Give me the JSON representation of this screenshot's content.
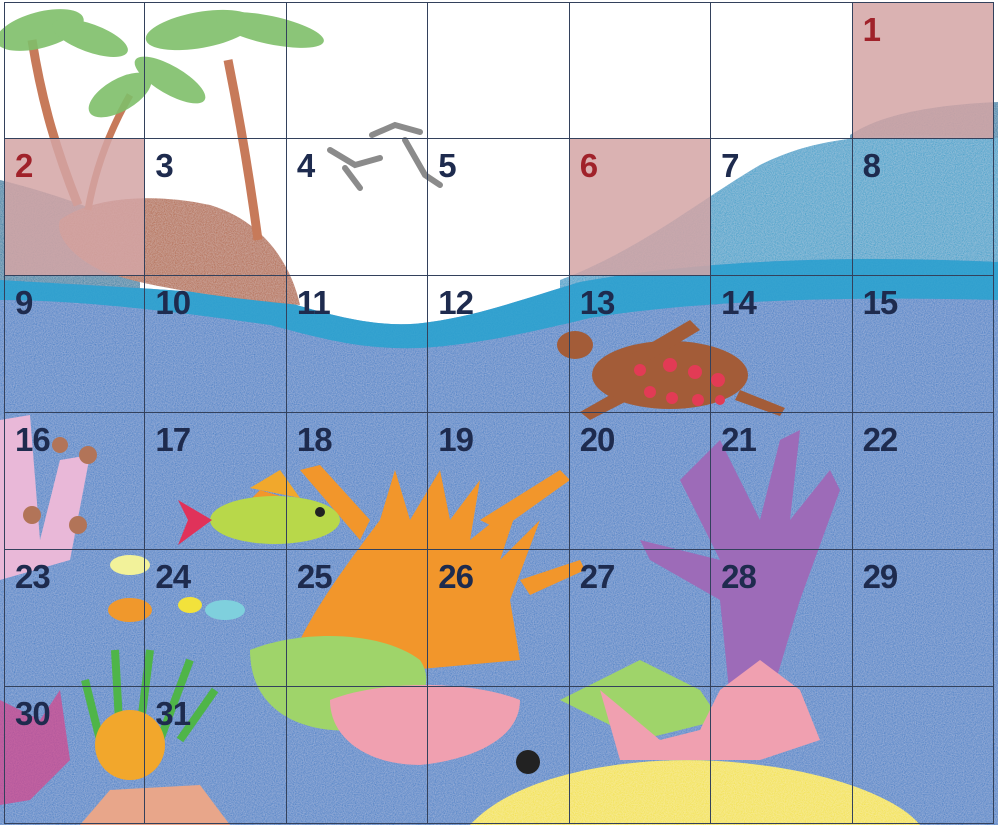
{
  "calendar": {
    "columns": 7,
    "leading_blank_days": 6,
    "days": [
      "1",
      "2",
      "3",
      "4",
      "5",
      "6",
      "7",
      "8",
      "9",
      "10",
      "11",
      "12",
      "13",
      "14",
      "15",
      "16",
      "17",
      "18",
      "19",
      "20",
      "21",
      "22",
      "23",
      "24",
      "25",
      "26",
      "27",
      "28",
      "29",
      "30",
      "31"
    ],
    "highlighted_days": [
      "1",
      "2",
      "6"
    ]
  },
  "colors": {
    "day_number": "#1e2b4e",
    "highlight_number": "#a0222a",
    "highlight_fill": "#d4a5a5",
    "grid_line": "#33415c",
    "sky": "#ffffff",
    "ocean": "#2f78c4",
    "wave": "#1d9bc8",
    "sand": "#f3e12b",
    "island": "#b0603a"
  }
}
